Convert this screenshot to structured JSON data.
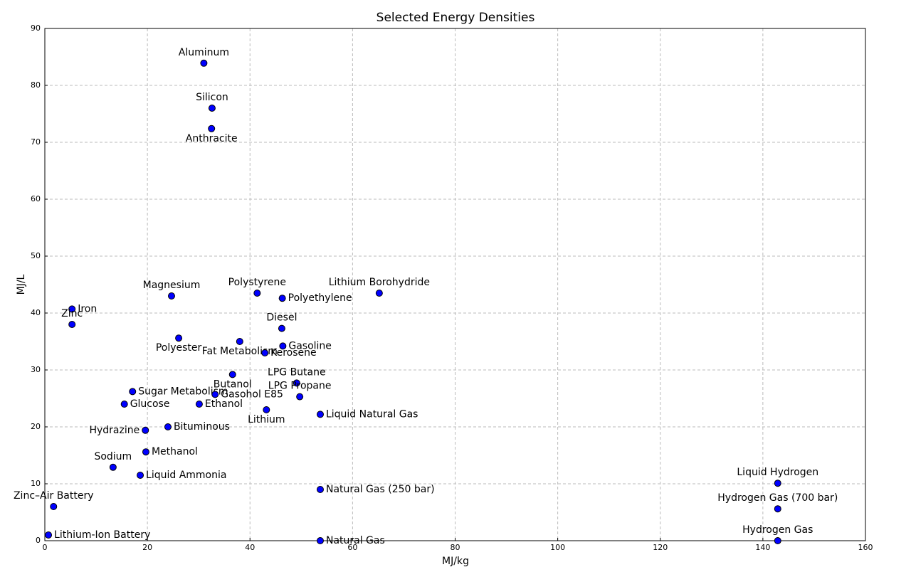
{
  "chart_data": {
    "type": "scatter",
    "title": "Selected Energy Densities",
    "x_label": "MJ/kg",
    "y_label": "MJ/L",
    "labels": [
      "Aluminum",
      "Silicon",
      "Anthracite",
      "Magnesium",
      "Polystyrene",
      "Polyethylene",
      "Lithium Borohydride",
      "Iron",
      "Zinc",
      "Polyester",
      "Fat Metabolism",
      "Diesel",
      "Gasoline",
      "Kerosene",
      "Butanol",
      "Sugar Metabolism",
      "LPG Butane",
      "Gasohol E85",
      "LPG Propane",
      "Glucose",
      "Ethanol",
      "Lithium",
      "Liquid Natural Gas",
      "Hydrazine",
      "Bituminous",
      "Methanol",
      "Sodium",
      "Liquid Ammonia",
      "Natural Gas (250 bar)",
      "Zinc–Air Battery",
      "Lithium-Ion Battery",
      "Natural Gas",
      "Liquid Hydrogen",
      "Hydrogen Gas (700 bar)",
      "Hydrogen Gas"
    ],
    "x": [
      31,
      32.6,
      32.5,
      24.7,
      41.4,
      46.3,
      65.2,
      5.3,
      5.3,
      26.1,
      38,
      46.2,
      46.4,
      42.9,
      36.6,
      17.1,
      49.1,
      33.2,
      49.7,
      15.5,
      30.1,
      43.2,
      53.7,
      19.6,
      24,
      19.7,
      13.3,
      18.6,
      53.7,
      1.7,
      0.7,
      53.7,
      142.9,
      142.9,
      142.9
    ],
    "values": [
      83.9,
      76,
      72.4,
      43,
      43.5,
      42.6,
      43.5,
      40.7,
      38,
      35.6,
      35,
      37.3,
      34.2,
      33,
      29.2,
      26.2,
      27.7,
      25.7,
      25.3,
      24,
      24,
      23,
      22.2,
      19.4,
      20,
      15.6,
      12.9,
      11.5,
      9,
      6,
      1,
      0,
      10.1,
      5.6,
      0
    ],
    "color": "#0000ff",
    "edge_color": "#000000",
    "xlim": [
      0,
      160
    ],
    "xticks": [
      0,
      20,
      40,
      60,
      80,
      100,
      120,
      140,
      160
    ],
    "ylim": [
      0,
      90
    ],
    "yticks": [
      0,
      10,
      20,
      30,
      40,
      50,
      60,
      70,
      80,
      90
    ],
    "grid": true
  }
}
